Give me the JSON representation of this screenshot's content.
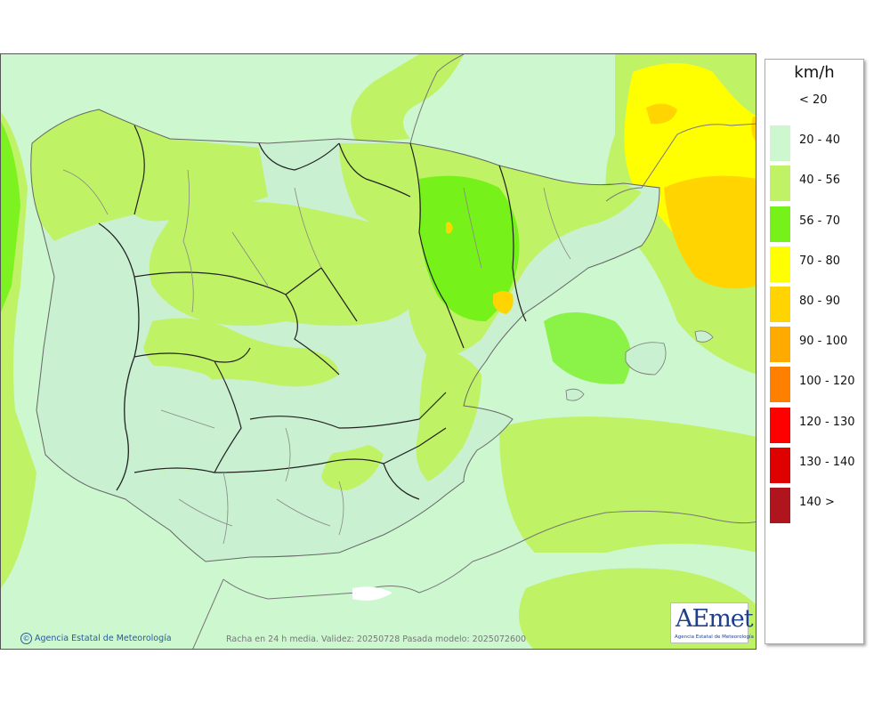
{
  "map": {
    "caption": "Racha en 24 h media. Validez: 20250728 Pasada modelo: 2025072600",
    "copyright": "Agencia Estatal de Meteorología",
    "copyright_symbol": "©",
    "logo": {
      "mark": "AEmet",
      "subtitle": "Agencia Estatal de Meteorología"
    }
  },
  "legend": {
    "unit": "km/h",
    "items": [
      {
        "label": "< 20",
        "color": "#ffffff"
      },
      {
        "label": "20 - 40",
        "color": "#ccf7cf"
      },
      {
        "label": "40 - 56",
        "color": "#bff264"
      },
      {
        "label": "56 - 70",
        "color": "#76f21a"
      },
      {
        "label": "70 - 80",
        "color": "#ffff00"
      },
      {
        "label": "80 - 90",
        "color": "#ffd400"
      },
      {
        "label": "90 - 100",
        "color": "#ffaa00"
      },
      {
        "label": "100 - 120",
        "color": "#ff7f00"
      },
      {
        "label": "120 - 130",
        "color": "#ff0000"
      },
      {
        "label": "130 - 140",
        "color": "#df0000"
      },
      {
        "label": "140 >",
        "color": "#b0141c"
      }
    ]
  }
}
